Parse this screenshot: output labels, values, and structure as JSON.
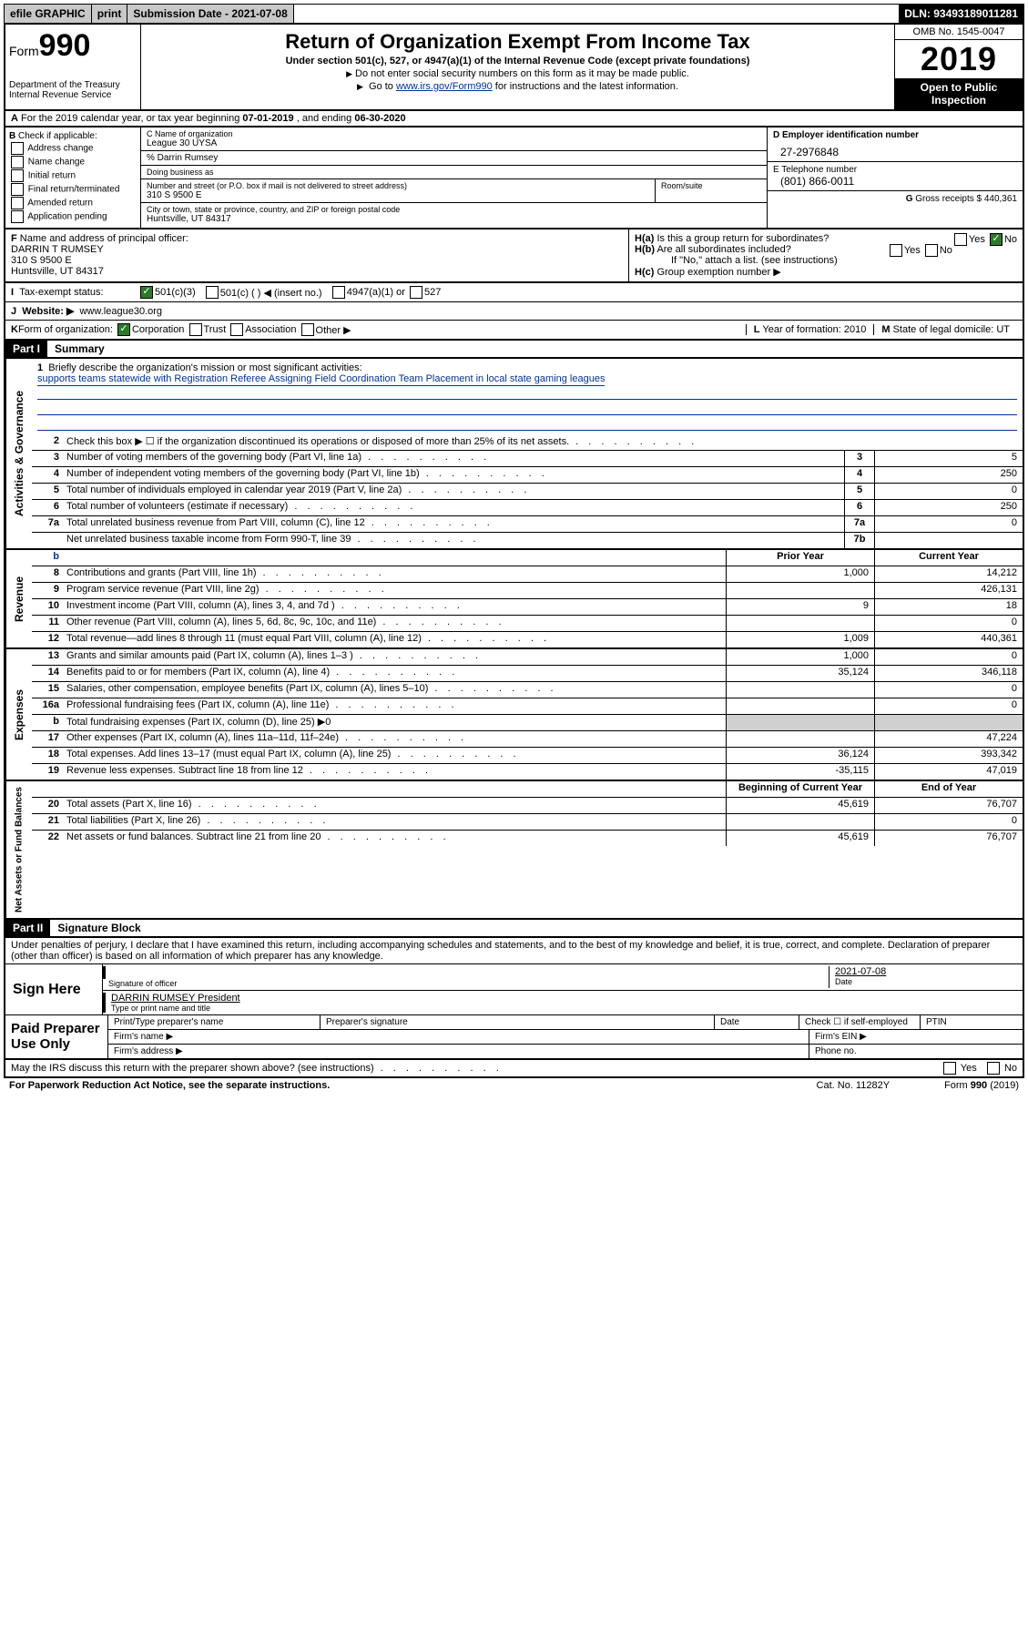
{
  "topbar": {
    "efile": "efile GRAPHIC",
    "print": "print",
    "submission_label": "Submission Date - ",
    "submission_date": "2021-07-08",
    "dln_label": "DLN: ",
    "dln": "93493189011281"
  },
  "header": {
    "form_prefix": "Form",
    "form_number": "990",
    "dept": "Department of the Treasury",
    "irs": "Internal Revenue Service",
    "title": "Return of Organization Exempt From Income Tax",
    "subtitle": "Under section 501(c), 527, or 4947(a)(1) of the Internal Revenue Code (except private foundations)",
    "note1": "Do not enter social security numbers on this form as it may be made public.",
    "note2_pre": "Go to ",
    "note2_link": "www.irs.gov/Form990",
    "note2_post": " for instructions and the latest information.",
    "omb": "OMB No. 1545-0047",
    "year": "2019",
    "inspect1": "Open to Public",
    "inspect2": "Inspection"
  },
  "row_a": {
    "label": "A",
    "text": "For the 2019 calendar year, or tax year beginning ",
    "begin": "07-01-2019",
    "mid": " , and ending ",
    "end": "06-30-2020"
  },
  "section_b": {
    "label": "B",
    "intro": " Check if applicable:",
    "opts": [
      "Address change",
      "Name change",
      "Initial return",
      "Final return/terminated",
      "Amended return",
      "Application pending"
    ]
  },
  "section_c": {
    "name_label": "C Name of organization",
    "name": "League 30 UYSA",
    "care_of": "% Darrin Rumsey",
    "dba_label": "Doing business as",
    "addr_label": "Number and street (or P.O. box if mail is not delivered to street address)",
    "addr": "310 S 9500 E",
    "room_label": "Room/suite",
    "city_label": "City or town, state or province, country, and ZIP or foreign postal code",
    "city": "Huntsville, UT  84317"
  },
  "section_de": {
    "d_label": "D Employer identification number",
    "d_val": "27-2976848",
    "e_label": "E Telephone number",
    "e_val": "(801) 866-0011",
    "g_label": "G",
    "g_text": " Gross receipts $ ",
    "g_val": "440,361"
  },
  "row_f": {
    "f_label": "F",
    "f_text": " Name and address of principal officer:",
    "f_name": "DARRIN T RUMSEY",
    "f_addr1": "310 S 9500 E",
    "f_addr2": "Huntsville, UT  84317",
    "ha_label": "H(a)",
    "ha_text": " Is this a group return for subordinates?",
    "hb_label": "H(b)",
    "hb_text": " Are all subordinates included?",
    "h_note": "If \"No,\" attach a list. (see instructions)",
    "hc_label": "H(c)",
    "hc_text": " Group exemption number ▶",
    "yes": "Yes",
    "no": "No"
  },
  "row_i": {
    "label": "I",
    "text": "Tax-exempt status:",
    "o1": "501(c)(3)",
    "o2": "501(c) (   ) ◀ (insert no.)",
    "o3": "4947(a)(1) or",
    "o4": "527"
  },
  "row_j": {
    "label": "J",
    "text": "Website: ▶",
    "val": "www.league30.org"
  },
  "row_k": {
    "label": "K",
    "text": " Form of organization:",
    "o1": "Corporation",
    "o2": "Trust",
    "o3": "Association",
    "o4": "Other ▶",
    "l_label": "L",
    "l_text": " Year of formation: ",
    "l_val": "2010",
    "m_label": "M",
    "m_text": " State of legal domicile: ",
    "m_val": "UT"
  },
  "parts": {
    "p1": "Part I",
    "p1_title": "Summary",
    "p2": "Part II",
    "p2_title": "Signature Block"
  },
  "mission": {
    "num": "1",
    "label": "Briefly describe the organization's mission or most significant activities:",
    "text": "supports teams statewide with Registration Referee Assigning Field Coordination Team Placement in local state gaming leagues"
  },
  "gov_lines": [
    {
      "n": "2",
      "d": "Check this box ▶ ☐ if the organization discontinued its operations or disposed of more than 25% of its net assets."
    },
    {
      "n": "3",
      "d": "Number of voting members of the governing body (Part VI, line 1a)",
      "box": "3",
      "v": "5"
    },
    {
      "n": "4",
      "d": "Number of independent voting members of the governing body (Part VI, line 1b)",
      "box": "4",
      "v": "250"
    },
    {
      "n": "5",
      "d": "Total number of individuals employed in calendar year 2019 (Part V, line 2a)",
      "box": "5",
      "v": "0"
    },
    {
      "n": "6",
      "d": "Total number of volunteers (estimate if necessary)",
      "box": "6",
      "v": "250"
    },
    {
      "n": "7a",
      "d": "Total unrelated business revenue from Part VIII, column (C), line 12",
      "box": "7a",
      "v": "0"
    },
    {
      "n": "",
      "d": "Net unrelated business taxable income from Form 990-T, line 39",
      "box": "7b",
      "v": ""
    }
  ],
  "headers": {
    "prior": "Prior Year",
    "current": "Current Year",
    "boy": "Beginning of Current Year",
    "eoy": "End of Year"
  },
  "rev_lines": [
    {
      "n": "8",
      "d": "Contributions and grants (Part VIII, line 1h)",
      "p": "1,000",
      "c": "14,212"
    },
    {
      "n": "9",
      "d": "Program service revenue (Part VIII, line 2g)",
      "p": "",
      "c": "426,131"
    },
    {
      "n": "10",
      "d": "Investment income (Part VIII, column (A), lines 3, 4, and 7d )",
      "p": "9",
      "c": "18"
    },
    {
      "n": "11",
      "d": "Other revenue (Part VIII, column (A), lines 5, 6d, 8c, 9c, 10c, and 11e)",
      "p": "",
      "c": "0"
    },
    {
      "n": "12",
      "d": "Total revenue—add lines 8 through 11 (must equal Part VIII, column (A), line 12)",
      "p": "1,009",
      "c": "440,361"
    }
  ],
  "exp_lines": [
    {
      "n": "13",
      "d": "Grants and similar amounts paid (Part IX, column (A), lines 1–3 )",
      "p": "1,000",
      "c": "0"
    },
    {
      "n": "14",
      "d": "Benefits paid to or for members (Part IX, column (A), line 4)",
      "p": "35,124",
      "c": "346,118"
    },
    {
      "n": "15",
      "d": "Salaries, other compensation, employee benefits (Part IX, column (A), lines 5–10)",
      "p": "",
      "c": "0"
    },
    {
      "n": "16a",
      "d": "Professional fundraising fees (Part IX, column (A), line 11e)",
      "p": "",
      "c": "0"
    },
    {
      "n": "b",
      "d": "Total fundraising expenses (Part IX, column (D), line 25) ▶0",
      "shade": true
    },
    {
      "n": "17",
      "d": "Other expenses (Part IX, column (A), lines 11a–11d, 11f–24e)",
      "p": "",
      "c": "47,224"
    },
    {
      "n": "18",
      "d": "Total expenses. Add lines 13–17 (must equal Part IX, column (A), line 25)",
      "p": "36,124",
      "c": "393,342"
    },
    {
      "n": "19",
      "d": "Revenue less expenses. Subtract line 18 from line 12",
      "p": "-35,115",
      "c": "47,019"
    }
  ],
  "net_lines": [
    {
      "n": "20",
      "d": "Total assets (Part X, line 16)",
      "p": "45,619",
      "c": "76,707"
    },
    {
      "n": "21",
      "d": "Total liabilities (Part X, line 26)",
      "p": "",
      "c": "0"
    },
    {
      "n": "22",
      "d": "Net assets or fund balances. Subtract line 21 from line 20",
      "p": "45,619",
      "c": "76,707"
    }
  ],
  "side_labels": {
    "gov": "Activities & Governance",
    "rev": "Revenue",
    "exp": "Expenses",
    "net": "Net Assets or Fund Balances"
  },
  "sig": {
    "perjury": "Under penalties of perjury, I declare that I have examined this return, including accompanying schedules and statements, and to the best of my knowledge and belief, it is true, correct, and complete. Declaration of preparer (other than officer) is based on all information of which preparer has any knowledge.",
    "sign_here": "Sign Here",
    "sig_officer": "Signature of officer",
    "date_label": "Date",
    "date": "2021-07-08",
    "name_title": "DARRIN RUMSEY  President",
    "type_label": "Type or print name and title",
    "paid": "Paid Preparer Use Only",
    "p_name": "Print/Type preparer's name",
    "p_sig": "Preparer's signature",
    "p_date": "Date",
    "p_check": "Check ☐ if self-employed",
    "p_ptin": "PTIN",
    "firm_name": "Firm's name   ▶",
    "firm_ein": "Firm's EIN ▶",
    "firm_addr": "Firm's address ▶",
    "phone": "Phone no."
  },
  "footer": {
    "discuss": "May the IRS discuss this return with the preparer shown above? (see instructions)",
    "yes": "Yes",
    "no": "No",
    "paperwork": "For Paperwork Reduction Act Notice, see the separate instructions.",
    "cat": "Cat. No. 11282Y",
    "form": "Form 990 (2019)"
  }
}
